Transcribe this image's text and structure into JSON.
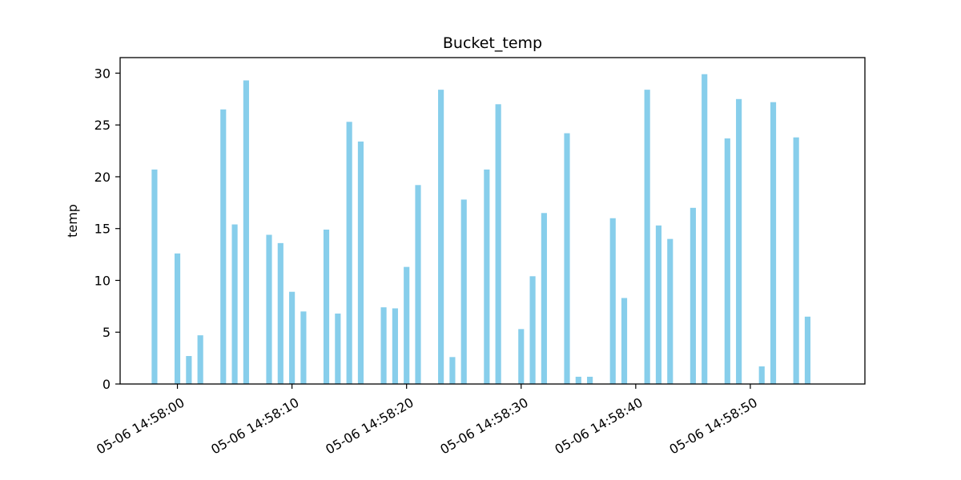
{
  "chart_data": {
    "type": "bar",
    "title": "Bucket_temp",
    "xlabel": "",
    "ylabel": "temp",
    "ylim": [
      0,
      31.5
    ],
    "xlim": [
      "05-06 14:57:55",
      "05-06 14:59:00"
    ],
    "grid": false,
    "bar_color": "#87ceeb",
    "x": [
      "05-06 14:57:58",
      "05-06 14:58:00",
      "05-06 14:58:01",
      "05-06 14:58:02",
      "05-06 14:58:04",
      "05-06 14:58:05",
      "05-06 14:58:06",
      "05-06 14:58:08",
      "05-06 14:58:09",
      "05-06 14:58:10",
      "05-06 14:58:11",
      "05-06 14:58:13",
      "05-06 14:58:14",
      "05-06 14:58:15",
      "05-06 14:58:16",
      "05-06 14:58:18",
      "05-06 14:58:19",
      "05-06 14:58:20",
      "05-06 14:58:21",
      "05-06 14:58:23",
      "05-06 14:58:24",
      "05-06 14:58:25",
      "05-06 14:58:27",
      "05-06 14:58:28",
      "05-06 14:58:30",
      "05-06 14:58:31",
      "05-06 14:58:32",
      "05-06 14:58:34",
      "05-06 14:58:35",
      "05-06 14:58:36",
      "05-06 14:58:38",
      "05-06 14:58:39",
      "05-06 14:58:41",
      "05-06 14:58:42",
      "05-06 14:58:43",
      "05-06 14:58:45",
      "05-06 14:58:46",
      "05-06 14:58:48",
      "05-06 14:58:49",
      "05-06 14:58:51",
      "05-06 14:58:52",
      "05-06 14:58:54",
      "05-06 14:58:55"
    ],
    "values": [
      20.7,
      12.6,
      2.7,
      4.7,
      26.5,
      15.4,
      29.3,
      14.4,
      13.6,
      8.9,
      7.0,
      14.9,
      6.8,
      25.3,
      23.4,
      7.4,
      7.3,
      11.3,
      19.2,
      28.4,
      2.6,
      17.8,
      20.7,
      27.0,
      5.3,
      10.4,
      16.5,
      24.2,
      0.7,
      0.7,
      16.0,
      8.3,
      28.4,
      15.3,
      14.0,
      17.0,
      29.9,
      23.7,
      27.5,
      1.7,
      27.2,
      23.8,
      6.5
    ],
    "x_ticks": [
      "05-06 14:58:00",
      "05-06 14:58:10",
      "05-06 14:58:20",
      "05-06 14:58:30",
      "05-06 14:58:40",
      "05-06 14:58:50"
    ],
    "y_ticks": [
      0,
      5,
      10,
      15,
      20,
      25,
      30
    ]
  }
}
